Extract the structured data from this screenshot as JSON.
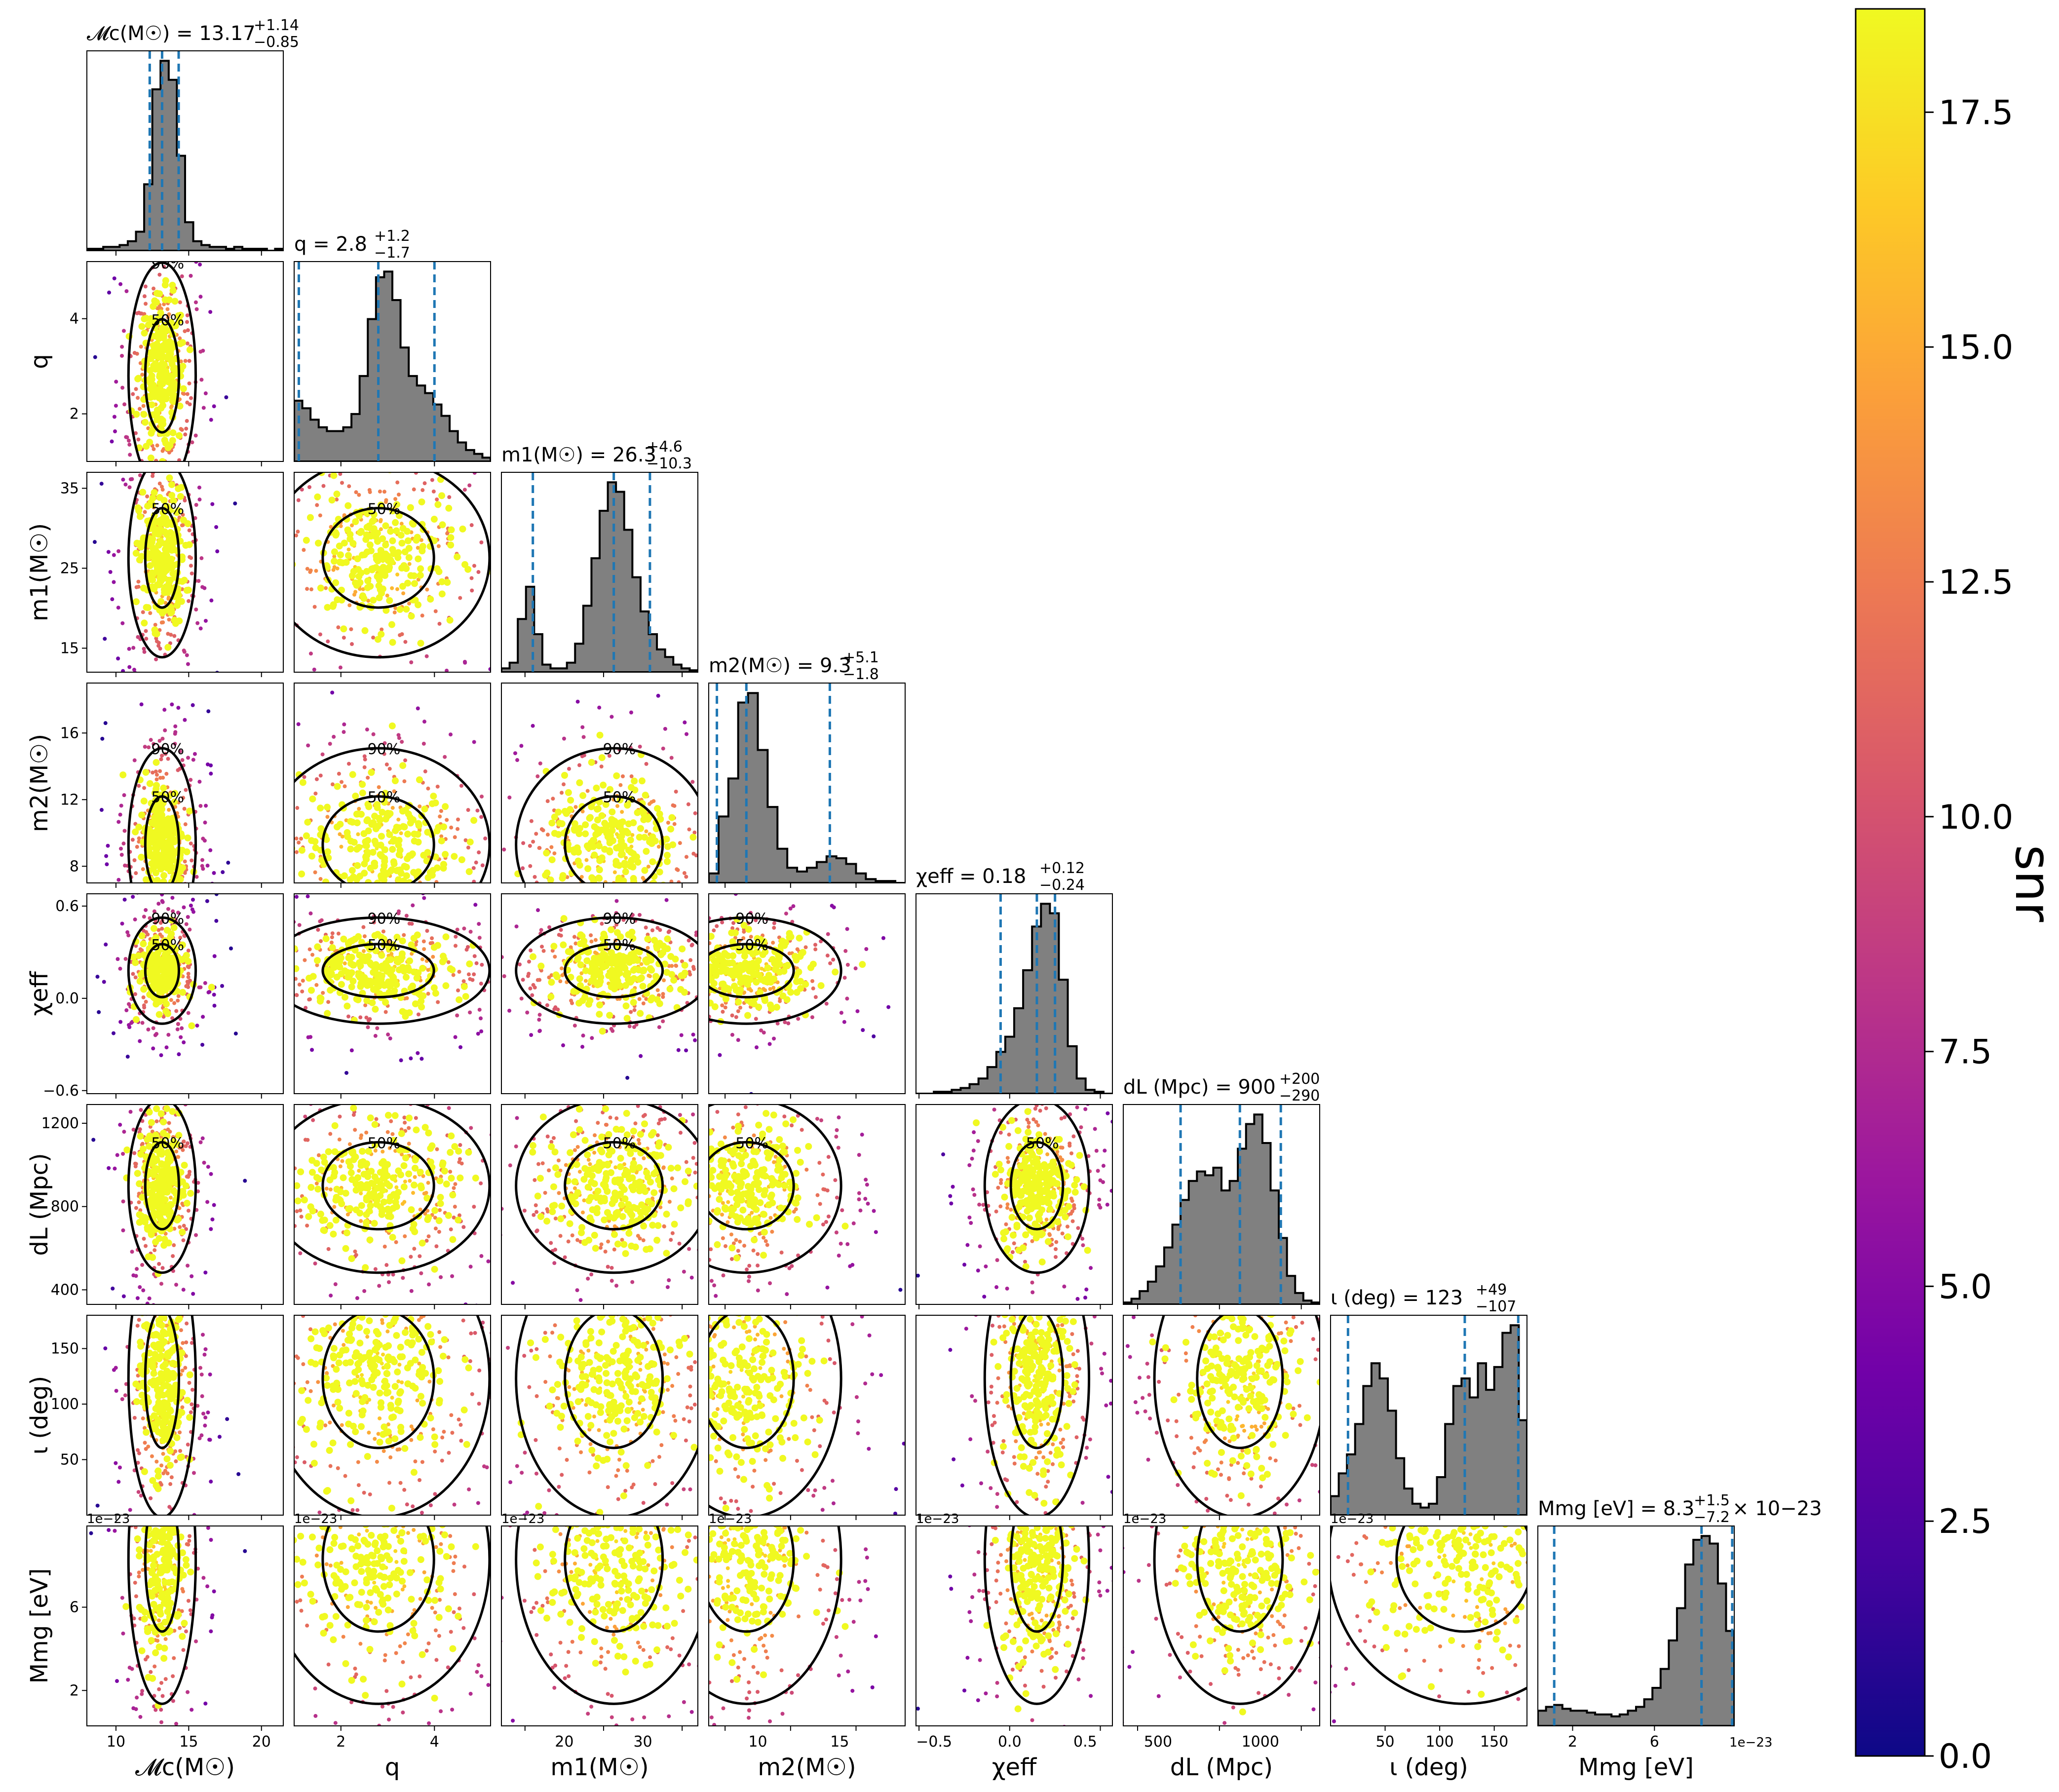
{
  "figure": {
    "colorbar_label": "snr",
    "colorbar_ticks": [
      "0.0",
      "2.5",
      "5.0",
      "7.5",
      "10.0",
      "12.5",
      "15.0",
      "17.5"
    ],
    "colorbar_range": [
      0,
      18.6
    ],
    "colormap": [
      "#0d0887",
      "#46039f",
      "#7201a8",
      "#9c179e",
      "#bd3786",
      "#d8576b",
      "#ed7953",
      "#fb9f3a",
      "#fdca26",
      "#f0f921"
    ],
    "scatter_colormap": "plasma",
    "contour_levels": [
      "50%",
      "90%"
    ],
    "quantile_line_color": "#1f77b4",
    "hist_fill_color": "#808080"
  },
  "chart_data": {
    "type": "corner",
    "parameters": [
      {
        "id": "mc",
        "label": "𝓜c(M☉)",
        "title": "𝓜c(M☉) = 13.17",
        "median": "13.17",
        "plus": "+1.14",
        "minus": "−0.85",
        "range": [
          8,
          21.5
        ],
        "ticks": [
          10,
          15,
          20
        ],
        "tick_labels": [
          "10",
          "15",
          "20"
        ],
        "quantiles": [
          12.32,
          13.17,
          14.31
        ]
      },
      {
        "id": "q",
        "label": "q",
        "title": "q = 2.8",
        "median": "2.8",
        "plus": "+1.2",
        "minus": "−1.7",
        "range": [
          1.0,
          5.2
        ],
        "ticks": [
          2,
          4
        ],
        "tick_labels": [
          "2",
          "4"
        ],
        "quantiles": [
          1.1,
          2.8,
          4.0
        ]
      },
      {
        "id": "m1",
        "label": "m1(M☉)",
        "title": "m1(M☉) = 26.3",
        "median": "26.3",
        "plus": "+4.6",
        "minus": "−10.3",
        "range": [
          12,
          37
        ],
        "ticks": [
          15,
          25,
          35
        ],
        "tick_labels": [
          "15",
          "25",
          "35"
        ],
        "quantiles": [
          16.0,
          26.3,
          30.9
        ]
      },
      {
        "id": "m2",
        "label": "m2(M☉)",
        "title": "m2(M☉) = 9.3",
        "median": "9.3",
        "plus": "+5.1",
        "minus": "−1.8",
        "range": [
          7,
          19
        ],
        "ticks": [
          8,
          12,
          16
        ],
        "tick_labels": [
          "8",
          "12",
          "16"
        ],
        "quantiles": [
          7.5,
          9.3,
          14.4
        ]
      },
      {
        "id": "chi",
        "label": "χeff",
        "title": "χeff = 0.18",
        "median": "0.18",
        "plus": "+0.12",
        "minus": "−0.24",
        "range": [
          -0.62,
          0.68
        ],
        "ticks": [
          -0.6,
          0.0,
          0.6
        ],
        "tick_labels": [
          "−0.6",
          "0.0",
          "0.6"
        ],
        "quantiles": [
          -0.06,
          0.18,
          0.3
        ]
      },
      {
        "id": "dl",
        "label": "dL (Mpc)",
        "title": "dL (Mpc) = 900",
        "median": "900",
        "plus": "+200",
        "minus": "−290",
        "range": [
          330,
          1290
        ],
        "ticks": [
          400,
          800,
          1200
        ],
        "tick_labels": [
          "400",
          "800",
          "1200"
        ],
        "quantiles": [
          610,
          900,
          1100
        ]
      },
      {
        "id": "iota",
        "label": "ι (deg)",
        "title": "ι (deg) = 123",
        "median": "123",
        "plus": "+49",
        "minus": "−107",
        "range": [
          0,
          180
        ],
        "ticks": [
          50,
          100,
          150
        ],
        "tick_labels": [
          "50",
          "100",
          "150"
        ],
        "quantiles": [
          16,
          123,
          172
        ]
      },
      {
        "id": "mmg",
        "label": "Mmg [eV]",
        "title": "Mmg [eV] = 8.3",
        "median": "8.3",
        "plus": "+1.5",
        "minus": "−7.2",
        "scale_note": "× 10−23",
        "range": [
          0.3,
          9.9
        ],
        "ticks": [
          2,
          6
        ],
        "tick_labels": [
          "2",
          "6"
        ],
        "ticks_2d": [
          2,
          6
        ],
        "offset_text": "1e−23",
        "quantiles": [
          1.1,
          8.3,
          9.8
        ]
      }
    ],
    "row_tick_labels": {
      "q": [
        "2",
        "4"
      ],
      "m1": [
        "15",
        "25",
        "35"
      ],
      "m2": [
        "8",
        "12",
        "16"
      ],
      "chi": [
        "−0.6",
        "0.0",
        "0.6"
      ],
      "dl": [
        "400",
        "800",
        "1200"
      ],
      "iota": [
        "50",
        "100",
        "150"
      ],
      "mmg": [
        "2",
        "6"
      ]
    },
    "col_tick_labels": {
      "mc": [
        "10",
        "15",
        "20"
      ],
      "q": [
        "2",
        "4"
      ],
      "m1": [
        "20",
        "30"
      ],
      "m2": [
        "10",
        "15"
      ],
      "chi": [
        "−0.5",
        "0.0",
        "0.5"
      ],
      "dl": [
        "500",
        "1000"
      ],
      "iota": [
        "50",
        "100",
        "150"
      ],
      "mmg": [
        "2",
        "6"
      ]
    },
    "histograms": {
      "mc": [
        0.01,
        0.01,
        0.02,
        0.02,
        0.03,
        0.05,
        0.1,
        0.35,
        0.85,
        1.0,
        0.9,
        0.5,
        0.15,
        0.05,
        0.03,
        0.02,
        0.02,
        0.01,
        0.02,
        0.01,
        0.01,
        0.01,
        0.0,
        0.01
      ],
      "q": [
        0.32,
        0.28,
        0.22,
        0.18,
        0.16,
        0.16,
        0.18,
        0.25,
        0.45,
        0.75,
        0.97,
        1.0,
        0.85,
        0.6,
        0.45,
        0.4,
        0.36,
        0.3,
        0.24,
        0.16,
        0.1,
        0.06,
        0.04,
        0.02
      ],
      "m1": [
        0.02,
        0.05,
        0.28,
        0.45,
        0.2,
        0.04,
        0.02,
        0.02,
        0.05,
        0.15,
        0.35,
        0.6,
        0.85,
        1.0,
        0.95,
        0.75,
        0.5,
        0.32,
        0.2,
        0.12,
        0.08,
        0.04,
        0.02,
        0.01
      ],
      "m2": [
        0.05,
        0.35,
        0.55,
        0.95,
        1.0,
        0.7,
        0.4,
        0.18,
        0.08,
        0.06,
        0.08,
        0.11,
        0.14,
        0.13,
        0.1,
        0.05,
        0.02,
        0.01,
        0.01,
        0.0
      ],
      "chi": [
        0.0,
        0.0,
        0.01,
        0.01,
        0.02,
        0.03,
        0.05,
        0.08,
        0.14,
        0.22,
        0.3,
        0.45,
        0.65,
        0.88,
        1.0,
        0.95,
        0.6,
        0.25,
        0.08,
        0.02,
        0.01,
        0.0
      ],
      "dl": [
        0.01,
        0.03,
        0.07,
        0.12,
        0.2,
        0.3,
        0.42,
        0.55,
        0.65,
        0.7,
        0.68,
        0.72,
        0.6,
        0.65,
        0.82,
        0.95,
        1.0,
        0.85,
        0.6,
        0.35,
        0.15,
        0.06,
        0.02,
        0.01
      ],
      "iota": [
        0.1,
        0.22,
        0.32,
        0.48,
        0.68,
        0.8,
        0.72,
        0.55,
        0.3,
        0.14,
        0.06,
        0.04,
        0.06,
        0.2,
        0.48,
        0.68,
        0.72,
        0.62,
        0.8,
        0.66,
        0.78,
        0.96,
        1.0,
        0.5
      ],
      "mmg": [
        0.08,
        0.1,
        0.11,
        0.09,
        0.08,
        0.08,
        0.07,
        0.06,
        0.06,
        0.05,
        0.06,
        0.08,
        0.1,
        0.14,
        0.2,
        0.3,
        0.45,
        0.62,
        0.85,
        0.98,
        1.0,
        0.96,
        0.75,
        0.5
      ]
    },
    "contour_label_text": [
      "50%",
      "90%"
    ]
  }
}
